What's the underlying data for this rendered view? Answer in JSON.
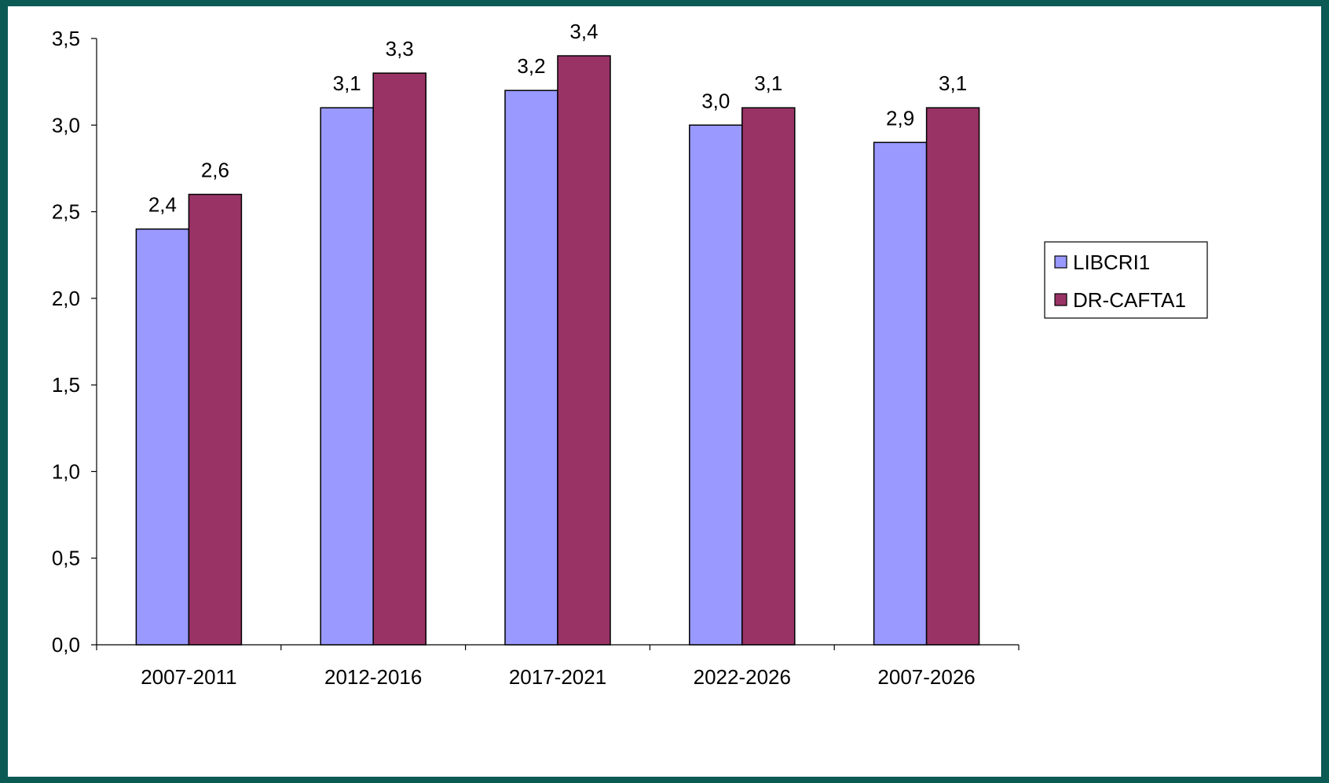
{
  "chart_data": {
    "type": "bar",
    "categories": [
      "2007-2011",
      "2012-2016",
      "2017-2021",
      "2022-2026",
      "2007-2026"
    ],
    "series": [
      {
        "name": "LIBCRI1",
        "values": [
          2.4,
          3.1,
          3.2,
          3.0,
          2.9
        ],
        "labels": [
          "2,4",
          "3,1",
          "3,2",
          "3,0",
          "2,9"
        ],
        "color": "#9999ff"
      },
      {
        "name": "DR-CAFTA1",
        "values": [
          2.6,
          3.3,
          3.4,
          3.1,
          3.1
        ],
        "labels": [
          "2,6",
          "3,3",
          "3,4",
          "3,1",
          "3,1"
        ],
        "color": "#993366"
      }
    ],
    "title": "",
    "xlabel": "",
    "ylabel": "",
    "ylim": [
      0,
      3.5
    ],
    "yticks": [
      0,
      0.5,
      1.0,
      1.5,
      2.0,
      2.5,
      3.0,
      3.5
    ],
    "ytick_labels": [
      "0,0",
      "0,5",
      "1,0",
      "1,5",
      "2,0",
      "2,5",
      "3,0",
      "3,5"
    ],
    "grid": false,
    "legend": "right",
    "background": "#ffffff",
    "frame_color": "#0c5a54"
  }
}
